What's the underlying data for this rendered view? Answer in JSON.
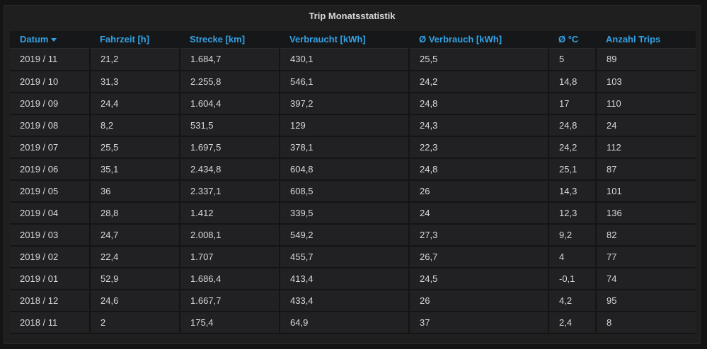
{
  "panel": {
    "title": "Trip Monatsstatistik"
  },
  "table": {
    "columns": [
      "Datum",
      "Fahrzeit [h]",
      "Strecke [km]",
      "Verbraucht [kWh]",
      "Ø Verbrauch [kWh]",
      "Ø °C",
      "Anzahl Trips"
    ],
    "sort": {
      "column": "Datum",
      "direction": "desc"
    },
    "rows": [
      [
        "2019 / 11",
        "21,2",
        "1.684,7",
        "430,1",
        "25,5",
        "5",
        "89"
      ],
      [
        "2019 / 10",
        "31,3",
        "2.255,8",
        "546,1",
        "24,2",
        "14,8",
        "103"
      ],
      [
        "2019 / 09",
        "24,4",
        "1.604,4",
        "397,2",
        "24,8",
        "17",
        "110"
      ],
      [
        "2019 / 08",
        "8,2",
        "531,5",
        "129",
        "24,3",
        "24,8",
        "24"
      ],
      [
        "2019 / 07",
        "25,5",
        "1.697,5",
        "378,1",
        "22,3",
        "24,2",
        "112"
      ],
      [
        "2019 / 06",
        "35,1",
        "2.434,8",
        "604,8",
        "24,8",
        "25,1",
        "87"
      ],
      [
        "2019 / 05",
        "36",
        "2.337,1",
        "608,5",
        "26",
        "14,3",
        "101"
      ],
      [
        "2019 / 04",
        "28,8",
        "1.412",
        "339,5",
        "24",
        "12,3",
        "136"
      ],
      [
        "2019 / 03",
        "24,7",
        "2.008,1",
        "549,2",
        "27,3",
        "9,2",
        "82"
      ],
      [
        "2019 / 02",
        "22,4",
        "1.707",
        "455,7",
        "26,7",
        "4",
        "77"
      ],
      [
        "2019 / 01",
        "52,9",
        "1.686,4",
        "413,4",
        "24,5",
        "-0,1",
        "74"
      ],
      [
        "2018 / 12",
        "24,6",
        "1.667,7",
        "433,4",
        "26",
        "4,2",
        "95"
      ],
      [
        "2018 / 11",
        "2",
        "175,4",
        "64,9",
        "37",
        "2,4",
        "8"
      ]
    ]
  },
  "icons": {
    "sort": "caret-down-icon"
  },
  "colors": {
    "header_text": "#33a2e5",
    "body_text": "#d8d9da",
    "panel_bg": "#1f1f20",
    "page_bg": "#141414"
  }
}
